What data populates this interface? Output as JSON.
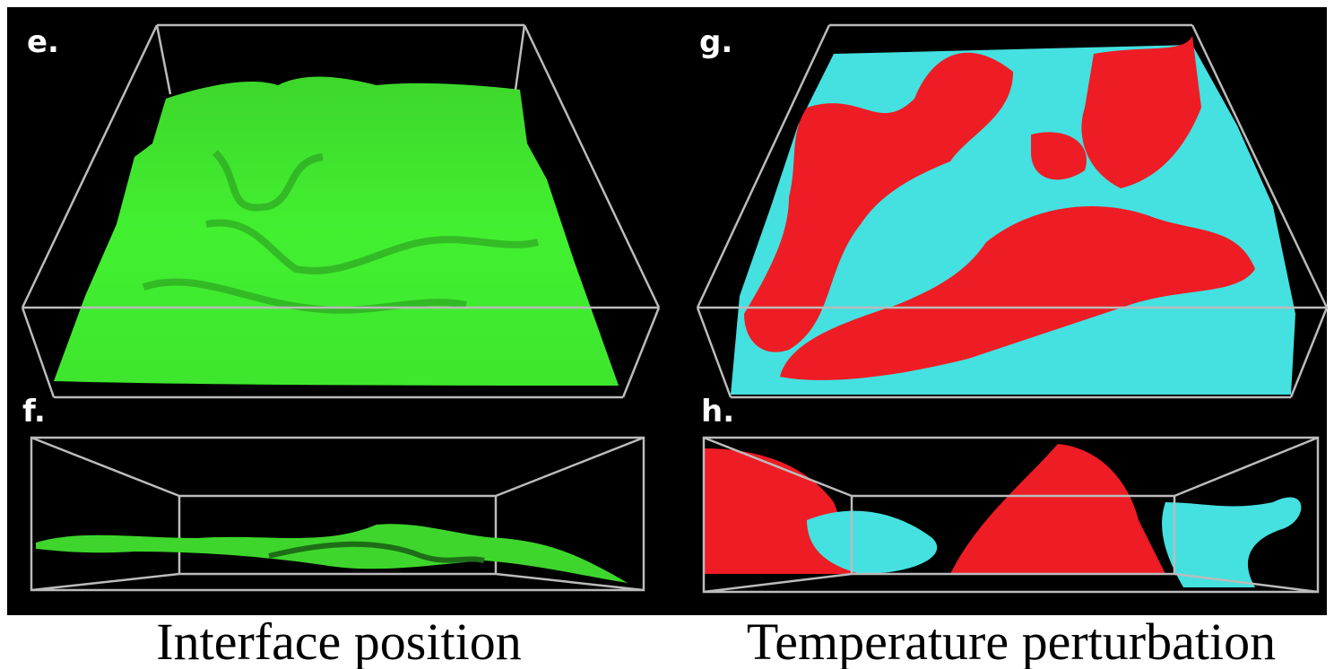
{
  "panels": [
    {
      "label": "e."
    },
    {
      "label": "f."
    },
    {
      "label": "g."
    },
    {
      "label": "h."
    }
  ],
  "captions": [
    "Interface position",
    "Temperature perturbation"
  ]
}
